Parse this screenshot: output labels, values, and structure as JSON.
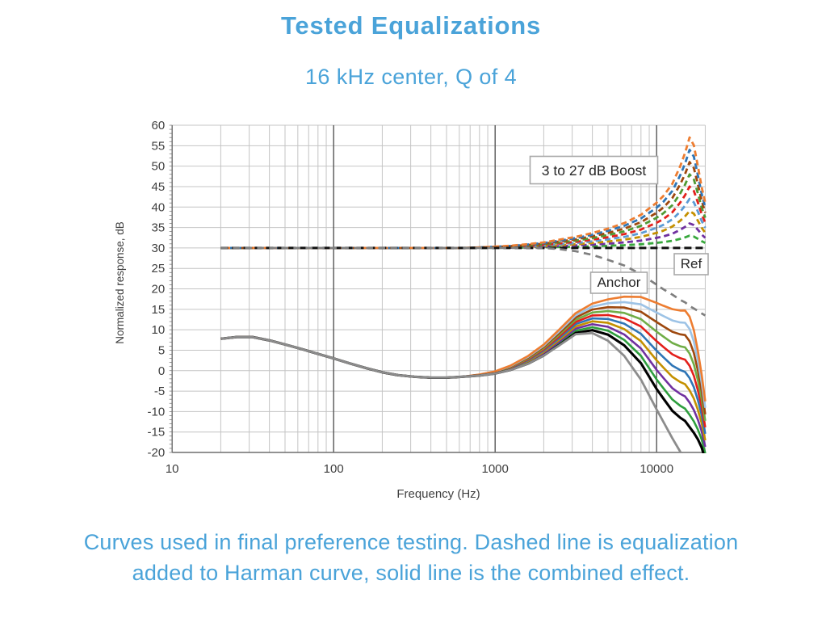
{
  "page": {
    "title": "Tested Equalizations",
    "subtitle": "16 kHz center, Q of 4",
    "caption": "Curves used in final preference testing. Dashed line is equalization added to Harman curve, solid line is the combined effect.",
    "accent_color": "#4aa3d9"
  },
  "chart_data": {
    "type": "line",
    "x_axis": {
      "label": "Frequency (Hz)",
      "scale": "log",
      "min": 10,
      "max": 20000,
      "tick_values": [
        10,
        100,
        1000,
        10000
      ],
      "tick_labels": [
        "10",
        "100",
        "1000",
        "10000"
      ]
    },
    "y_axis": {
      "label": "Normalized response, dB",
      "min": -20,
      "max": 60,
      "step": 5,
      "tick_labels": [
        "60",
        "55",
        "50",
        "45",
        "40",
        "35",
        "30",
        "25",
        "20",
        "15",
        "10",
        "5",
        "0",
        "-5",
        "-10",
        "-15",
        "-20"
      ]
    },
    "grid": true,
    "legend": "none",
    "annotations": {
      "boost": "3 to 27 dB Boost",
      "ref": "Ref",
      "anchor": "Anchor"
    },
    "ref_level_db": 30,
    "boost_gains_db": [
      3,
      6,
      9,
      12,
      15,
      18,
      21,
      24,
      27
    ],
    "frequencies_hz": [
      20,
      25,
      31.5,
      40,
      50,
      63,
      80,
      100,
      125,
      160,
      200,
      250,
      315,
      400,
      500,
      630,
      800,
      1000,
      1250,
      1600,
      2000,
      2500,
      3150,
      4000,
      5000,
      6300,
      8000,
      10000,
      11000,
      12500,
      14000,
      15000,
      16000,
      17000,
      18000,
      19000,
      20000
    ],
    "harman_combined_base_db": [
      7.8,
      8.2,
      8.2,
      7.4,
      6.4,
      5.3,
      4.1,
      3.0,
      1.8,
      0.6,
      -0.4,
      -1.1,
      -1.5,
      -1.7,
      -1.7,
      -1.5,
      -1.2,
      -0.7,
      0.2,
      1.7,
      3.7,
      6.3,
      9.2,
      9.9,
      8.8,
      6.2,
      1.8,
      -4.5,
      -6.8,
      -9.8,
      -11.5,
      -12.3,
      -13.8,
      -15.2,
      -16.8,
      -18.8,
      -21.8
    ],
    "eq_shape_solid": [
      0,
      0,
      0,
      0,
      0,
      0,
      0,
      0,
      0,
      0,
      0,
      0,
      0,
      0,
      0,
      0,
      0.01,
      0.02,
      0.04,
      0.07,
      0.1,
      0.14,
      0.18,
      0.24,
      0.32,
      0.44,
      0.6,
      0.78,
      0.84,
      0.92,
      0.97,
      1.0,
      1.0,
      0.93,
      0.8,
      0.66,
      0.53
    ],
    "eq_shape_dashed": [
      0,
      0,
      0,
      0,
      0,
      0,
      0,
      0,
      0,
      0,
      0,
      0,
      0,
      0,
      0,
      0,
      0.005,
      0.012,
      0.02,
      0.035,
      0.05,
      0.075,
      0.1,
      0.135,
      0.175,
      0.225,
      0.3,
      0.41,
      0.47,
      0.58,
      0.74,
      0.86,
      1.0,
      0.93,
      0.74,
      0.55,
      0.41
    ],
    "anchor_eq_dashed_db": [
      30,
      30,
      30,
      30,
      30,
      30,
      30,
      30,
      30,
      30,
      30,
      30,
      30,
      30,
      30,
      30,
      30,
      30,
      30,
      30,
      30,
      29.7,
      29.2,
      28.3,
      27.1,
      25.7,
      23.6,
      21.0,
      19.9,
      18.6,
      17.3,
      16.7,
      15.8,
      15.2,
      14.6,
      14.0,
      13.5
    ],
    "anchor_combined_db": [
      7.8,
      8.2,
      8.2,
      7.4,
      6.4,
      5.3,
      4.1,
      3.0,
      1.8,
      0.6,
      -0.4,
      -1.1,
      -1.5,
      -1.7,
      -1.7,
      -1.5,
      -1.2,
      -0.7,
      0.2,
      1.7,
      3.7,
      6.2,
      8.9,
      9.2,
      7.3,
      3.6,
      -2.2,
      -9.5,
      -12.5,
      -16.5,
      -19.8,
      -21.5,
      -23.0,
      -24.0,
      -25.0,
      -26.0,
      -27.0
    ],
    "series_colors": {
      "dashed": {
        "3": "#38a83c",
        "6": "#7030a0",
        "9": "#c49000",
        "12": "#5b9bd5",
        "15": "#e3201b",
        "18": "#4f9a34",
        "21": "#9e480e",
        "24": "#2e75b6",
        "27": "#ed7d31",
        "ref": "#111111",
        "anchor": "#7f7f7f"
      },
      "solid": {
        "3": "#2e9e3e",
        "6": "#7030a0",
        "9": "#c49000",
        "12": "#2e75b6",
        "15": "#e3201b",
        "18": "#70ad47",
        "21": "#9e480e",
        "24": "#9dc3e6",
        "27": "#ed7d31",
        "ref": "#000000",
        "anchor": "#8c8c8c"
      }
    },
    "grid_colors": {
      "minor": "#c4c4c4",
      "decade": "#565656",
      "spine": "#6e6e6e"
    }
  }
}
